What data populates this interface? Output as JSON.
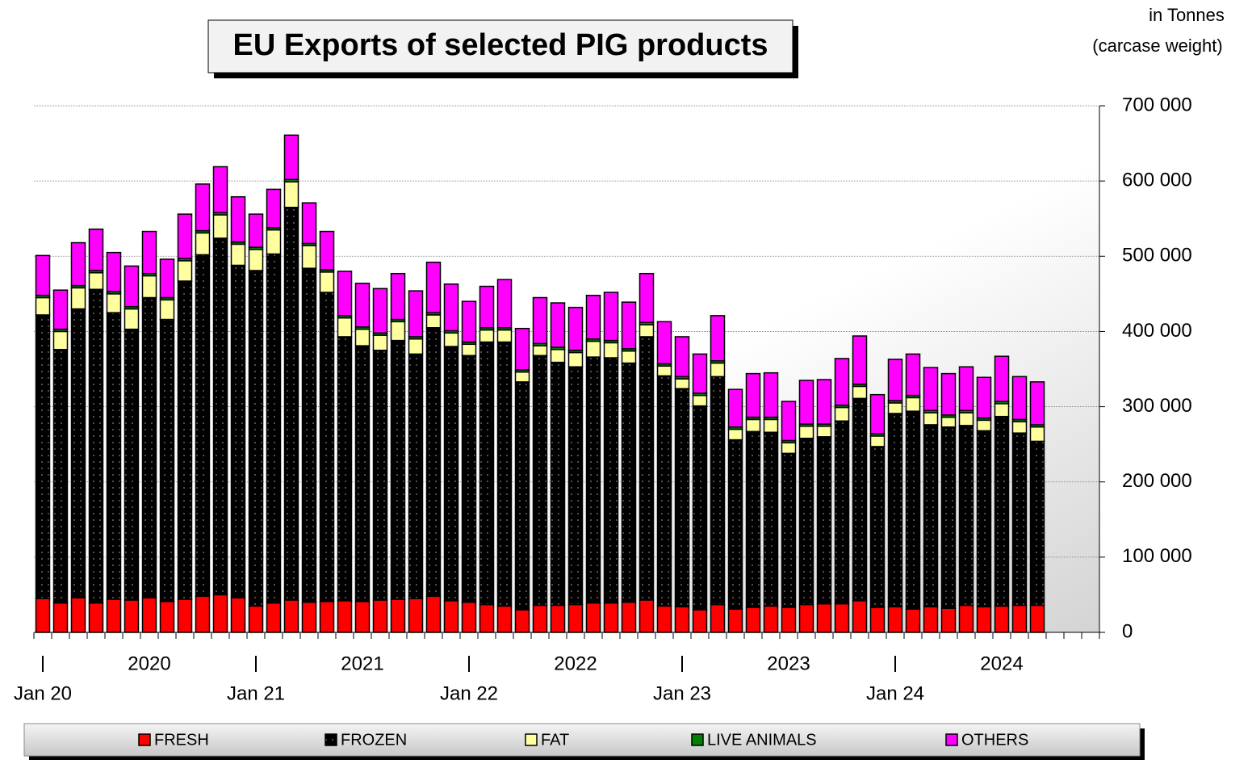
{
  "chart_data": {
    "type": "stacked_bar",
    "title": "EU Exports of selected PIG products",
    "unit_note": [
      "in Tonnes",
      "(carcase weight)"
    ],
    "categories": [
      "Jan 20",
      null,
      null,
      null,
      null,
      null,
      null,
      null,
      null,
      null,
      null,
      null,
      "Jan 21",
      null,
      null,
      null,
      null,
      null,
      null,
      null,
      null,
      null,
      null,
      null,
      "Jan 22",
      null,
      null,
      null,
      null,
      null,
      null,
      null,
      null,
      null,
      null,
      null,
      "Jan 23",
      null,
      null,
      null,
      null,
      null,
      null,
      null,
      null,
      null,
      null,
      null,
      "Jan 24",
      null,
      null,
      null,
      null,
      null,
      null,
      null,
      null
    ],
    "year_labels": [
      "2020",
      "2021",
      "2022",
      "2023",
      "2024"
    ],
    "ylim": [
      0,
      700000
    ],
    "yticks": [
      {
        "value": 0,
        "label": "0"
      },
      {
        "value": 100000,
        "label": "100 000"
      },
      {
        "value": 200000,
        "label": "200 000"
      },
      {
        "value": 300000,
        "label": "300 000"
      },
      {
        "value": 400000,
        "label": "400 000"
      },
      {
        "value": 500000,
        "label": "500 000"
      },
      {
        "value": 600000,
        "label": "600 000"
      },
      {
        "value": 700000,
        "label": "700 000"
      }
    ],
    "grid": true,
    "series": [
      {
        "name": "FRESH",
        "color": "#ff0000",
        "values": [
          45000,
          39000,
          46000,
          39000,
          44000,
          43000,
          46000,
          41000,
          44000,
          48000,
          50000,
          46000,
          35000,
          39000,
          43000,
          40000,
          41000,
          42000,
          41000,
          43000,
          44000,
          45000,
          48000,
          42000,
          40000,
          37000,
          35000,
          30000,
          36000,
          36000,
          37000,
          39000,
          39000,
          40000,
          43000,
          35000,
          34000,
          30000,
          37000,
          31000,
          33000,
          35000,
          33000,
          37000,
          38000,
          38000,
          42000,
          33000,
          34000,
          31000,
          34000,
          32000,
          36000,
          34000,
          35000,
          36000,
          36000
        ]
      },
      {
        "name": "FROZEN",
        "color": "#000000",
        "values": [
          377000,
          337000,
          384000,
          417000,
          381000,
          360000,
          399000,
          375000,
          423000,
          454000,
          474000,
          442000,
          446000,
          464000,
          522000,
          444000,
          411000,
          351000,
          340000,
          332000,
          344000,
          325000,
          357000,
          338000,
          328000,
          349000,
          351000,
          303000,
          332000,
          323000,
          316000,
          327000,
          326000,
          318000,
          350000,
          306000,
          290000,
          271000,
          303000,
          225000,
          234000,
          231000,
          205000,
          221000,
          222000,
          243000,
          269000,
          214000,
          257000,
          263000,
          242000,
          241000,
          239000,
          234000,
          252000,
          229000,
          218000
        ]
      },
      {
        "name": "FAT",
        "color": "#ffffa0",
        "values": [
          23000,
          24000,
          28000,
          22000,
          25000,
          27000,
          29000,
          26000,
          27000,
          29000,
          31000,
          28000,
          28000,
          32000,
          34000,
          30000,
          27000,
          25000,
          22000,
          20000,
          25000,
          20000,
          17000,
          18000,
          15000,
          16000,
          16000,
          13000,
          13000,
          17000,
          19000,
          21000,
          20000,
          16000,
          16000,
          13000,
          13000,
          14000,
          18000,
          14000,
          16000,
          17000,
          14000,
          16000,
          14000,
          18000,
          16000,
          14000,
          14000,
          18000,
          16000,
          13000,
          17000,
          14000,
          17000,
          15000,
          19000
        ]
      },
      {
        "name": "LIVE ANIMALS",
        "color": "#008000",
        "values": [
          3000,
          3000,
          3000,
          3000,
          3000,
          3000,
          3000,
          3000,
          3000,
          3000,
          3000,
          3000,
          3000,
          3000,
          3000,
          3000,
          3000,
          3000,
          3000,
          3000,
          3000,
          3000,
          3000,
          3000,
          3000,
          3000,
          3000,
          3000,
          3000,
          3000,
          3000,
          3000,
          3000,
          3000,
          3000,
          3000,
          3000,
          3000,
          3000,
          3000,
          3000,
          3000,
          3000,
          3000,
          3000,
          3000,
          3000,
          3000,
          3000,
          3000,
          3000,
          3000,
          3000,
          3000,
          3000,
          3000,
          3000
        ]
      },
      {
        "name": "OTHERS",
        "color": "#ff00ff",
        "values": [
          53000,
          52000,
          57000,
          55000,
          52000,
          54000,
          56000,
          51000,
          59000,
          62000,
          61000,
          60000,
          44000,
          51000,
          59000,
          54000,
          51000,
          59000,
          58000,
          59000,
          61000,
          61000,
          67000,
          62000,
          54000,
          55000,
          64000,
          55000,
          61000,
          59000,
          57000,
          58000,
          64000,
          62000,
          65000,
          56000,
          53000,
          52000,
          60000,
          50000,
          58000,
          59000,
          52000,
          58000,
          59000,
          62000,
          64000,
          52000,
          55000,
          55000,
          57000,
          55000,
          58000,
          54000,
          60000,
          57000,
          57000
        ]
      }
    ]
  }
}
